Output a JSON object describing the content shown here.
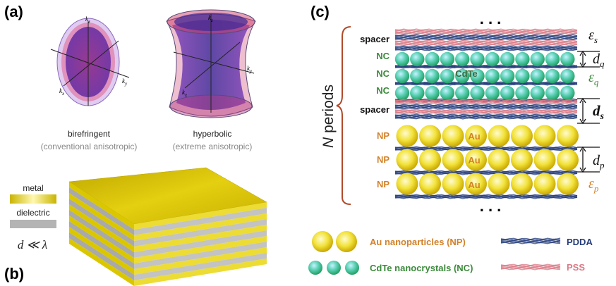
{
  "panels": {
    "a": "(a)",
    "b": "(b)",
    "c": "(c)"
  },
  "panel_a": {
    "axes": {
      "kz": "k",
      "kz_sub": "z",
      "ky": "k",
      "ky_sub": "y",
      "kx": "k",
      "kx_sub": "x"
    },
    "birefringent": {
      "title": "birefringent",
      "subtitle": "(conventional anisotropic)"
    },
    "hyperbolic": {
      "title": "hyperbolic",
      "subtitle": "(extreme anisotropic)"
    }
  },
  "panel_b": {
    "metal_label": "metal",
    "dielectric_label": "dielectric",
    "relation": "d ≪ λ",
    "colors": {
      "metal": "#e8d400",
      "dielectric": "#b4b4b4"
    }
  },
  "panel_c": {
    "n_periods": "N periods",
    "n_letter": "N",
    "periods_word": " periods",
    "dots": ". . .",
    "labels": {
      "spacer": "spacer",
      "nc": "NC",
      "np": "NP",
      "cdte": "CdTe",
      "au": "Au"
    },
    "right": {
      "eps_s": "ε",
      "eps_s_sub": "s",
      "eps_q": "ε",
      "eps_q_sub": "q",
      "eps_p": "ε",
      "eps_p_sub": "p",
      "d_q": "d",
      "d_q_sub": "q",
      "d_s": "d",
      "d_s_sub": "s",
      "d_p": "d",
      "d_p_sub": "p"
    },
    "legend": {
      "au_np": "Au nanoparticles (NP)",
      "cdte_nc": "CdTe nanocrystals (NC)",
      "pdda": "PDDA",
      "pss": "PSS"
    },
    "colors": {
      "pdda": "#263d7c",
      "pss": "#d97a86",
      "au": "#e9d51c",
      "nc": "#3cbf8a",
      "np_label": "#d2822a",
      "nc_label": "#3c8a3c",
      "brace": "#b14a2a"
    }
  }
}
